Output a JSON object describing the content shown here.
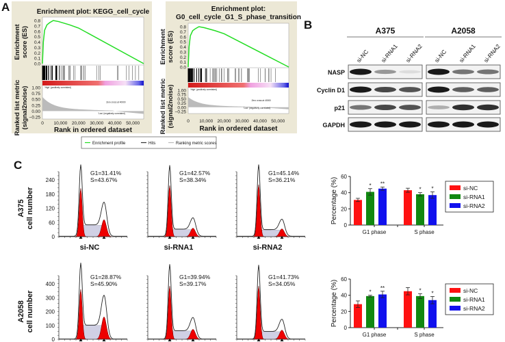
{
  "panel_labels": {
    "a": "A",
    "b": "B",
    "c": "C"
  },
  "gsea": {
    "plots": [
      {
        "title_lines": [
          "Enrichment plot: KEGG_cell_cycle"
        ],
        "es_peak": 0.8
      },
      {
        "title_lines": [
          "Enrichment plot:",
          "G0_cell_cycle_G1_S_phase_transition"
        ],
        "es_peak": 0.8
      }
    ],
    "es_label_lines": [
      "Enrichment",
      "score (ES)"
    ],
    "metric_label_lines": [
      "Ranked list metric",
      "(signal2noise)"
    ],
    "xlabel": "Rank in ordered dataset",
    "es_ticks": [
      "0.8",
      "0.7",
      "0.6",
      "0.5",
      "0.4",
      "0.3",
      "0.2",
      "0.1",
      "0.0"
    ],
    "metric_ticks": [
      "1.00",
      "0.75",
      "0.50",
      "0.25",
      "0.00",
      "−0.25"
    ],
    "x_ticks": [
      "0",
      "10,000",
      "20,000",
      "30,000",
      "40,000",
      "50,000"
    ],
    "high_label": "'High' (positively correlated)",
    "low_label": "'Low' (negatively correlated)",
    "zero_cross": "Zero cross at 40000",
    "legend": [
      "Enrichment profile",
      "Hits",
      "Ranking metric scores"
    ],
    "colors": {
      "bg": "#ece8d6",
      "profile": "#22dd22"
    }
  },
  "western": {
    "cell_lines": [
      "A375",
      "A2058"
    ],
    "lanes": [
      "si-NC",
      "si-RNA1",
      "si-RNA2"
    ],
    "proteins": [
      "NASP",
      "Cyclin D1",
      "p21",
      "GAPDH"
    ],
    "band_intensity": {
      "A375": [
        [
          1.0,
          0.45,
          0.15
        ],
        [
          1.0,
          0.8,
          0.75
        ],
        [
          0.6,
          0.8,
          0.75
        ],
        [
          1,
          1,
          1
        ]
      ],
      "A2058": [
        [
          1.0,
          0.6,
          0.6
        ],
        [
          1.0,
          0.7,
          0.7
        ],
        [
          0.35,
          0.9,
          0.9
        ],
        [
          1,
          1,
          1
        ]
      ]
    }
  },
  "flow": {
    "rows": [
      {
        "cell_line": "A375",
        "ylabel": "cell number",
        "y_ticks": [
          "0",
          "60",
          "120",
          "180",
          "240"
        ],
        "y_max": 300,
        "samples": [
          {
            "name": "si-NC",
            "g1": "G1=31.41%",
            "s": "S=43.67%",
            "g1_peak": 255,
            "g2_peak": 120,
            "s_level": 48
          },
          {
            "name": "si-RNA1",
            "g1": "G1=42.57%",
            "s": "S=38.34%",
            "g1_peak": 270,
            "g2_peak": 60,
            "s_level": 30
          },
          {
            "name": "si-RNA2",
            "g1": "G1=45.14%",
            "s": "S=36.21%",
            "g1_peak": 275,
            "g2_peak": 55,
            "s_level": 28
          }
        ]
      },
      {
        "cell_line": "A2058",
        "ylabel": "cell number",
        "y_ticks": [
          "0",
          "100",
          "200",
          "300",
          "400"
        ],
        "y_max": 480,
        "samples": [
          {
            "name": "si-NC",
            "g1": "G1=28.87%",
            "s": "S=45.90%",
            "g1_peak": 450,
            "g2_peak": 270,
            "s_level": 100
          },
          {
            "name": "si-RNA1",
            "g1": "G1=39.94%",
            "s": "S=39.17%",
            "g1_peak": 480,
            "g2_peak": 120,
            "s_level": 60
          },
          {
            "name": "si-RNA2",
            "g1": "G1=41.73%",
            "s": "S=34.05%",
            "g1_peak": 480,
            "g2_peak": 110,
            "s_level": 55
          }
        ]
      }
    ]
  },
  "chart_data": [
    {
      "type": "bar",
      "title": "A375",
      "ylabel": "Percentage (%)",
      "ylim": [
        0,
        60
      ],
      "y_ticks": [
        "0",
        "20",
        "40",
        "60"
      ],
      "categories": [
        "G1 phase",
        "S phase"
      ],
      "series": [
        {
          "name": "si-NC",
          "color": "#ff1111",
          "values": [
            31,
            43
          ],
          "errors": [
            2,
            2.5
          ],
          "sig": [
            "",
            ""
          ]
        },
        {
          "name": "si-RNA1",
          "color": "#118811",
          "values": [
            41,
            38
          ],
          "errors": [
            4,
            2
          ],
          "sig": [
            "*",
            "*"
          ]
        },
        {
          "name": "si-RNA2",
          "color": "#1111ee",
          "values": [
            45,
            37
          ],
          "errors": [
            2,
            4
          ],
          "sig": [
            "**",
            "*"
          ]
        }
      ]
    },
    {
      "type": "bar",
      "title": "A2058",
      "ylabel": "Percentage (%)",
      "ylim": [
        0,
        60
      ],
      "y_ticks": [
        "0",
        "20",
        "40",
        "60"
      ],
      "categories": [
        "G1 phase",
        "S phase"
      ],
      "series": [
        {
          "name": "si-NC",
          "color": "#ff1111",
          "values": [
            29,
            45
          ],
          "errors": [
            4,
            4.5
          ],
          "sig": [
            "",
            ""
          ]
        },
        {
          "name": "si-RNA1",
          "color": "#118811",
          "values": [
            39,
            39
          ],
          "errors": [
            1,
            3
          ],
          "sig": [
            "*",
            "*"
          ]
        },
        {
          "name": "si-RNA2",
          "color": "#1111ee",
          "values": [
            41,
            34
          ],
          "errors": [
            4,
            4.5
          ],
          "sig": [
            "**",
            "*"
          ]
        }
      ]
    }
  ]
}
